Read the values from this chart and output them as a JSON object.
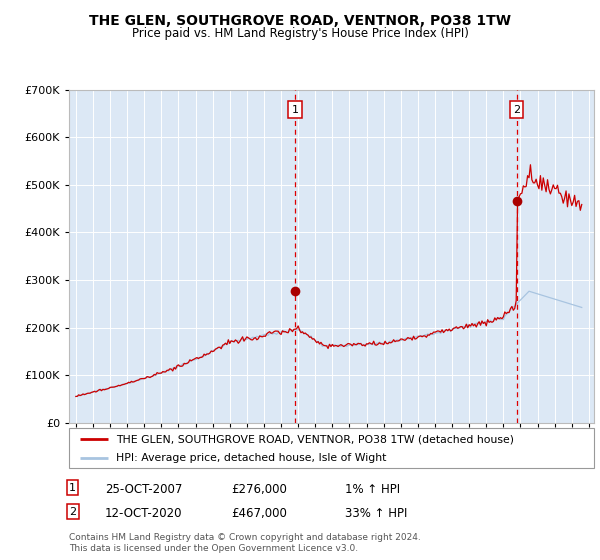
{
  "title": "THE GLEN, SOUTHGROVE ROAD, VENTNOR, PO38 1TW",
  "subtitle": "Price paid vs. HM Land Registry's House Price Index (HPI)",
  "legend_line1": "THE GLEN, SOUTHGROVE ROAD, VENTNOR, PO38 1TW (detached house)",
  "legend_line2": "HPI: Average price, detached house, Isle of Wight",
  "footnote": "Contains HM Land Registry data © Crown copyright and database right 2024.\nThis data is licensed under the Open Government Licence v3.0.",
  "marker1_date": "25-OCT-2007",
  "marker1_price": "£276,000",
  "marker1_hpi": "1% ↑ HPI",
  "marker2_date": "12-OCT-2020",
  "marker2_price": "£467,000",
  "marker2_hpi": "33% ↑ HPI",
  "hpi_color": "#a8c4e0",
  "house_color": "#cc0000",
  "marker_color": "#aa0000",
  "bg_color": "#dce8f5",
  "ylim": [
    0,
    700000
  ],
  "yticks": [
    0,
    100000,
    200000,
    300000,
    400000,
    500000,
    600000,
    700000
  ],
  "m1_x": 2007.82,
  "m1_y": 276000,
  "m2_x": 2020.78,
  "m2_y": 467000,
  "xlim_left": 1994.6,
  "xlim_right": 2025.3
}
